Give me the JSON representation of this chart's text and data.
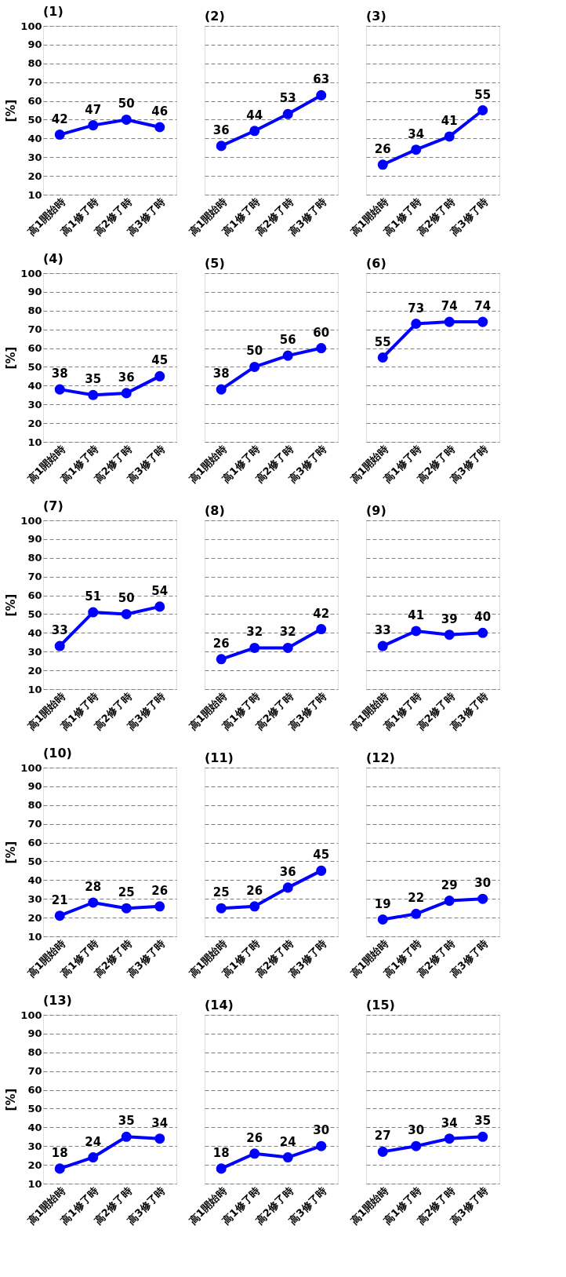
{
  "chart_data": [
    {
      "type": "line",
      "title": "(1)",
      "ylabel": "[%]",
      "categories": [
        "高1開始時",
        "高1修了時",
        "高2修了時",
        "高3修了時"
      ],
      "values": [
        42,
        47,
        50,
        46
      ],
      "color": "#0000ff",
      "ylim": [
        10,
        100
      ],
      "yticks": [
        10,
        20,
        30,
        40,
        50,
        60,
        70,
        80,
        90,
        100
      ],
      "grid": "y",
      "marker": "circle",
      "data_labels": true
    },
    {
      "type": "line",
      "title": "(2)",
      "categories": [
        "高1開始時",
        "高1修了時",
        "高2修了時",
        "高3修了時"
      ],
      "values": [
        36,
        44,
        53,
        63
      ],
      "color": "#0000ff",
      "ylim": [
        10,
        100
      ],
      "yticks": [
        10,
        20,
        30,
        40,
        50,
        60,
        70,
        80,
        90,
        100
      ],
      "grid": "y",
      "marker": "circle",
      "data_labels": true,
      "tick_labels": "x"
    },
    {
      "type": "line",
      "title": "(3)",
      "categories": [
        "高1開始時",
        "高1修了時",
        "高2修了時",
        "高3修了時"
      ],
      "values": [
        26,
        34,
        41,
        55
      ],
      "color": "#0000ff",
      "ylim": [
        10,
        100
      ],
      "yticks": [
        10,
        20,
        30,
        40,
        50,
        60,
        70,
        80,
        90,
        100
      ],
      "grid": "y",
      "marker": "circle",
      "data_labels": true,
      "tick_labels": "x"
    },
    {
      "type": "line",
      "title": "(4)",
      "ylabel": "[%]",
      "categories": [
        "高1開始時",
        "高1修了時",
        "高2修了時",
        "高3修了時"
      ],
      "values": [
        38,
        35,
        36,
        45
      ],
      "color": "#0000ff",
      "ylim": [
        10,
        100
      ],
      "yticks": [
        10,
        20,
        30,
        40,
        50,
        60,
        70,
        80,
        90,
        100
      ],
      "grid": "y",
      "marker": "circle",
      "data_labels": true
    },
    {
      "type": "line",
      "title": "(5)",
      "categories": [
        "高1開始時",
        "高1修了時",
        "高2修了時",
        "高3修了時"
      ],
      "values": [
        38,
        50,
        56,
        60
      ],
      "color": "#0000ff",
      "ylim": [
        10,
        100
      ],
      "yticks": [
        10,
        20,
        30,
        40,
        50,
        60,
        70,
        80,
        90,
        100
      ],
      "grid": "y",
      "marker": "circle",
      "data_labels": true,
      "tick_labels": "x"
    },
    {
      "type": "line",
      "title": "(6)",
      "categories": [
        "高1開始時",
        "高1修了時",
        "高2修了時",
        "高3修了時"
      ],
      "values": [
        55,
        73,
        74,
        74
      ],
      "color": "#0000ff",
      "ylim": [
        10,
        100
      ],
      "yticks": [
        10,
        20,
        30,
        40,
        50,
        60,
        70,
        80,
        90,
        100
      ],
      "grid": "y",
      "marker": "circle",
      "data_labels": true,
      "tick_labels": "x"
    },
    {
      "type": "line",
      "title": "(7)",
      "ylabel": "[%]",
      "categories": [
        "高1開始時",
        "高1修了時",
        "高2修了時",
        "高3修了時"
      ],
      "values": [
        33,
        51,
        50,
        54
      ],
      "color": "#0000ff",
      "ylim": [
        10,
        100
      ],
      "yticks": [
        10,
        20,
        30,
        40,
        50,
        60,
        70,
        80,
        90,
        100
      ],
      "grid": "y",
      "marker": "circle",
      "data_labels": true
    },
    {
      "type": "line",
      "title": "(8)",
      "categories": [
        "高1開始時",
        "高1修了時",
        "高2修了時",
        "高3修了時"
      ],
      "values": [
        26,
        32,
        32,
        42
      ],
      "color": "#0000ff",
      "ylim": [
        10,
        100
      ],
      "yticks": [
        10,
        20,
        30,
        40,
        50,
        60,
        70,
        80,
        90,
        100
      ],
      "grid": "y",
      "marker": "circle",
      "data_labels": true,
      "tick_labels": "x"
    },
    {
      "type": "line",
      "title": "(9)",
      "categories": [
        "高1開始時",
        "高1修了時",
        "高2修了時",
        "高3修了時"
      ],
      "values": [
        33,
        41,
        39,
        40
      ],
      "color": "#0000ff",
      "ylim": [
        10,
        100
      ],
      "yticks": [
        10,
        20,
        30,
        40,
        50,
        60,
        70,
        80,
        90,
        100
      ],
      "grid": "y",
      "marker": "circle",
      "data_labels": true,
      "tick_labels": "x"
    },
    {
      "type": "line",
      "title": "(10)",
      "ylabel": "[%]",
      "categories": [
        "高1開始時",
        "高1修了時",
        "高2修了時",
        "高3修了時"
      ],
      "values": [
        21,
        28,
        25,
        26
      ],
      "color": "#0000ff",
      "ylim": [
        10,
        100
      ],
      "yticks": [
        10,
        20,
        30,
        40,
        50,
        60,
        70,
        80,
        90,
        100
      ],
      "grid": "y",
      "marker": "circle",
      "data_labels": true
    },
    {
      "type": "line",
      "title": "(11)",
      "categories": [
        "高1開始時",
        "高1修了時",
        "高2修了時",
        "高3修了時"
      ],
      "values": [
        25,
        26,
        36,
        45
      ],
      "color": "#0000ff",
      "ylim": [
        10,
        100
      ],
      "yticks": [
        10,
        20,
        30,
        40,
        50,
        60,
        70,
        80,
        90,
        100
      ],
      "grid": "y",
      "marker": "circle",
      "data_labels": true,
      "tick_labels": "x"
    },
    {
      "type": "line",
      "title": "(12)",
      "categories": [
        "高1開始時",
        "高1修了時",
        "高2修了時",
        "高3修了時"
      ],
      "values": [
        19,
        22,
        29,
        30
      ],
      "color": "#0000ff",
      "ylim": [
        10,
        100
      ],
      "yticks": [
        10,
        20,
        30,
        40,
        50,
        60,
        70,
        80,
        90,
        100
      ],
      "grid": "y",
      "marker": "circle",
      "data_labels": true,
      "tick_labels": "x"
    },
    {
      "type": "line",
      "title": "(13)",
      "ylabel": "[%]",
      "categories": [
        "高1開始時",
        "高1修了時",
        "高2修了時",
        "高3修了時"
      ],
      "values": [
        18,
        24,
        35,
        34
      ],
      "color": "#0000ff",
      "ylim": [
        10,
        100
      ],
      "yticks": [
        10,
        20,
        30,
        40,
        50,
        60,
        70,
        80,
        90,
        100
      ],
      "grid": "y",
      "marker": "circle",
      "data_labels": true
    },
    {
      "type": "line",
      "title": "(14)",
      "categories": [
        "高1開始時",
        "高1修了時",
        "高2修了時",
        "高3修了時"
      ],
      "values": [
        18,
        26,
        24,
        30
      ],
      "color": "#0000ff",
      "ylim": [
        10,
        100
      ],
      "yticks": [
        10,
        20,
        30,
        40,
        50,
        60,
        70,
        80,
        90,
        100
      ],
      "grid": "y",
      "marker": "circle",
      "data_labels": true,
      "tick_labels": "x"
    },
    {
      "type": "line",
      "title": "(15)",
      "categories": [
        "高1開始時",
        "高1修了時",
        "高2修了時",
        "高3修了時"
      ],
      "values": [
        27,
        30,
        34,
        35
      ],
      "color": "#0000ff",
      "ylim": [
        10,
        100
      ],
      "yticks": [
        10,
        20,
        30,
        40,
        50,
        60,
        70,
        80,
        90,
        100
      ],
      "grid": "y",
      "marker": "circle",
      "data_labels": true,
      "tick_labels": "x"
    }
  ]
}
